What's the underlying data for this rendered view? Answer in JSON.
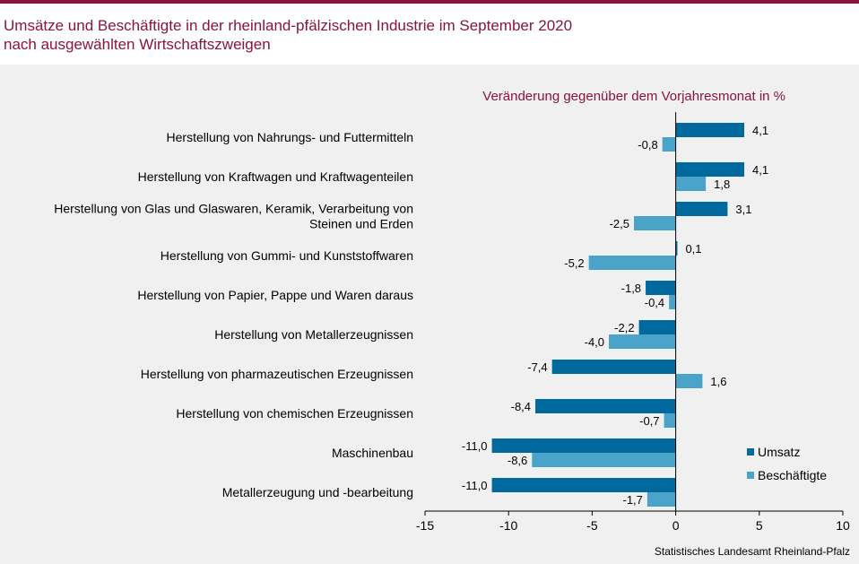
{
  "title_line1": "Umsätze und Beschäftigte in der rheinland-pfälzischen Industrie im September 2020",
  "title_line2": "nach ausgewählten Wirtschaftszweigen",
  "subtitle": "Veränderung gegenüber dem Vorjahresmonat in %",
  "source": "Statistisches Landesamt Rheinland-Pfalz",
  "colors": {
    "accent": "#8a1538",
    "umsatz": "#006a9e",
    "beschaeftigte": "#4aa3c9",
    "plot_bg": "#f0f0f0"
  },
  "chart_data": {
    "type": "bar",
    "orientation": "horizontal",
    "categories": [
      [
        "Herstellung von Nahrungs- und Futtermitteln"
      ],
      [
        "Herstellung von Kraftwagen und Kraftwagenteilen"
      ],
      [
        "Herstellung von Glas und Glaswaren, Keramik, Verarbeitung von",
        "Steinen und Erden"
      ],
      [
        "Herstellung von Gummi- und Kunststoffwaren"
      ],
      [
        "Herstellung von Papier, Pappe und Waren daraus"
      ],
      [
        "Herstellung von Metallerzeugnissen"
      ],
      [
        "Herstellung von pharmazeutischen Erzeugnissen"
      ],
      [
        "Herstellung von chemischen Erzeugnissen"
      ],
      [
        "Maschinenbau"
      ],
      [
        "Metallerzeugung und -bearbeitung"
      ]
    ],
    "series": [
      {
        "name": "Umsatz",
        "values": [
          4.1,
          4.1,
          3.1,
          0.1,
          -1.8,
          -2.2,
          -7.4,
          -8.4,
          -11.0,
          -11.0
        ]
      },
      {
        "name": "Beschäftigte",
        "values": [
          -0.8,
          1.8,
          -2.5,
          -5.2,
          -0.4,
          -4.0,
          1.6,
          -0.7,
          -8.6,
          -1.7
        ]
      }
    ],
    "xlim": [
      -15,
      10
    ],
    "xticks": [
      -15,
      -10,
      -5,
      0,
      5,
      10
    ],
    "grid": false,
    "legend_position": "bottom-right",
    "decimal_separator": ","
  }
}
